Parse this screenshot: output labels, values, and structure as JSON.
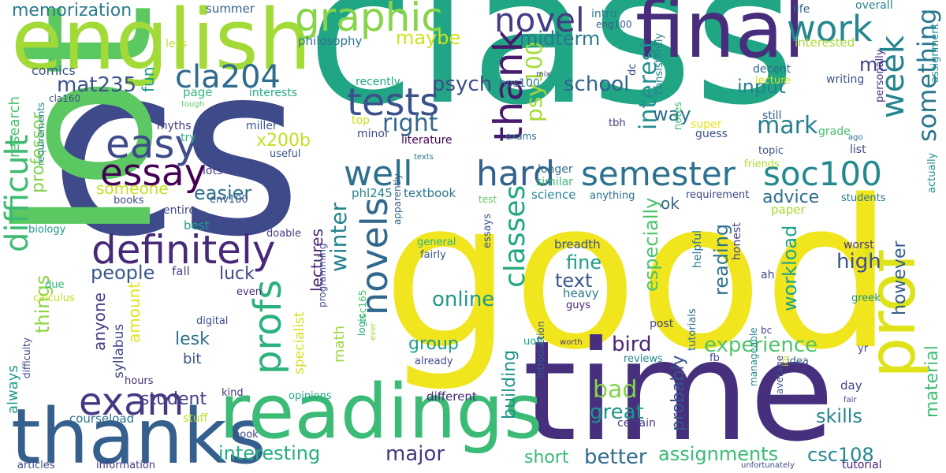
{
  "words": [
    {
      "text": "class",
      "color": "#21a685",
      "rotate": false
    },
    {
      "text": "cs",
      "color": "#3e4a89",
      "rotate": false
    },
    {
      "text": "good",
      "color": "#f1e51d",
      "rotate": false
    },
    {
      "text": "lot",
      "color": "#5cc862",
      "rotate": true
    },
    {
      "text": "time",
      "color": "#46307e",
      "rotate": false
    },
    {
      "text": "english",
      "color": "#a2da37",
      "rotate": false
    },
    {
      "text": "final",
      "color": "#472d7b",
      "rotate": false
    },
    {
      "text": "thanks",
      "color": "#355f8d",
      "rotate": false
    },
    {
      "text": "readings",
      "color": "#3bbb75",
      "rotate": false
    },
    {
      "text": "prof",
      "color": "#dde318",
      "rotate": true
    },
    {
      "text": "difficult",
      "color": "#3fbc73",
      "rotate": true
    },
    {
      "text": "graphic",
      "color": "#86d549",
      "rotate": false
    },
    {
      "text": "tests",
      "color": "#3b518b",
      "rotate": false
    },
    {
      "text": "novel",
      "color": "#433e85",
      "rotate": false
    },
    {
      "text": "thank",
      "color": "#481a6c",
      "rotate": true
    },
    {
      "text": "work",
      "color": "#24878e",
      "rotate": false
    },
    {
      "text": "week",
      "color": "#25858e",
      "rotate": true
    },
    {
      "text": "something",
      "color": "#2a788e",
      "rotate": true
    },
    {
      "text": "easy",
      "color": "#3e4c8a",
      "rotate": false
    },
    {
      "text": "essay",
      "color": "#440154",
      "rotate": false
    },
    {
      "text": "definitely",
      "color": "#482878",
      "rotate": false
    },
    {
      "text": "well",
      "color": "#2d708e",
      "rotate": false
    },
    {
      "text": "hard",
      "color": "#33638d",
      "rotate": false
    },
    {
      "text": "semester",
      "color": "#2c728e",
      "rotate": false
    },
    {
      "text": "soc100",
      "color": "#23898e",
      "rotate": false
    },
    {
      "text": "profs",
      "color": "#2db27d",
      "rotate": true
    },
    {
      "text": "novels",
      "color": "#31688e",
      "rotate": true
    },
    {
      "text": "exam",
      "color": "#453882",
      "rotate": false
    },
    {
      "text": "cla204",
      "color": "#2f6b8e",
      "rotate": false
    },
    {
      "text": "mat235",
      "color": "#3a548c",
      "rotate": false
    },
    {
      "text": "right",
      "color": "#31678e",
      "rotate": false
    },
    {
      "text": "psy100",
      "color": "#a5db36",
      "rotate": true
    },
    {
      "text": "psych",
      "color": "#3d4d8a",
      "rotate": false
    },
    {
      "text": "maybe",
      "color": "#d0e11c",
      "rotate": false
    },
    {
      "text": "midterm",
      "color": "#2a778e",
      "rotate": false
    },
    {
      "text": "mc",
      "color": "#414487",
      "rotate": false
    },
    {
      "text": "school",
      "color": "#32648e",
      "rotate": false
    },
    {
      "text": "interest",
      "color": "#21908d",
      "rotate": true
    },
    {
      "text": "mark",
      "color": "#27808e",
      "rotate": false
    },
    {
      "text": "input",
      "color": "#26828e",
      "rotate": false
    },
    {
      "text": "way",
      "color": "#2e6f8e",
      "rotate": false
    },
    {
      "text": "memorization",
      "color": "#297b8e",
      "rotate": false
    },
    {
      "text": "research",
      "color": "#4ac16d",
      "rotate": true
    },
    {
      "text": "professor",
      "color": "#81d34d",
      "rotate": true
    },
    {
      "text": "comics",
      "color": "#3b528b",
      "rotate": false
    },
    {
      "text": "fun",
      "color": "#1e9c89",
      "rotate": true
    },
    {
      "text": "page",
      "color": "#32b67a",
      "rotate": false
    },
    {
      "text": "x200b",
      "color": "#c2df23",
      "rotate": false
    },
    {
      "text": "someone",
      "color": "#c5e021",
      "rotate": false
    },
    {
      "text": "easier",
      "color": "#2c718e",
      "rotate": false
    },
    {
      "text": "winter",
      "color": "#25848e",
      "rotate": true
    },
    {
      "text": "lectures",
      "color": "#482374",
      "rotate": true
    },
    {
      "text": "classes",
      "color": "#22a884",
      "rotate": true
    },
    {
      "text": "online",
      "color": "#1f998a",
      "rotate": false
    },
    {
      "text": "people",
      "color": "#38588c",
      "rotate": false
    },
    {
      "text": "luck",
      "color": "#3e4989",
      "rotate": false
    },
    {
      "text": "things",
      "color": "#8bd646",
      "rotate": true
    },
    {
      "text": "always",
      "color": "#1f9a8a",
      "rotate": true
    },
    {
      "text": "amount",
      "color": "#e2e418",
      "rotate": true
    },
    {
      "text": "anyone",
      "color": "#433e85",
      "rotate": true
    },
    {
      "text": "lesk",
      "color": "#2d718e",
      "rotate": false
    },
    {
      "text": "bit",
      "color": "#3a538b",
      "rotate": false
    },
    {
      "text": "group",
      "color": "#1f9e89",
      "rotate": false
    },
    {
      "text": "math",
      "color": "#9bd93c",
      "rotate": true
    },
    {
      "text": "bird",
      "color": "#482475",
      "rotate": false
    },
    {
      "text": "experience",
      "color": "#50c46a",
      "rotate": false
    },
    {
      "text": "high",
      "color": "#3c4f8a",
      "rotate": false
    },
    {
      "text": "however",
      "color": "#365c8d",
      "rotate": true
    },
    {
      "text": "reading",
      "color": "#2d718e",
      "rotate": true
    },
    {
      "text": "workload",
      "color": "#20a386",
      "rotate": true
    },
    {
      "text": "especially",
      "color": "#4cc26c",
      "rotate": true
    },
    {
      "text": "advice",
      "color": "#2e6e8e",
      "rotate": false
    },
    {
      "text": "ok",
      "color": "#33638d",
      "rotate": false
    },
    {
      "text": "fine",
      "color": "#1e9b8a",
      "rotate": false
    },
    {
      "text": "text",
      "color": "#39568c",
      "rotate": false
    },
    {
      "text": "probably",
      "color": "#3a548c",
      "rotate": true
    },
    {
      "text": "bad",
      "color": "#84d44b",
      "rotate": false
    },
    {
      "text": "great",
      "color": "#1f968b",
      "rotate": false
    },
    {
      "text": "building",
      "color": "#20938c",
      "rotate": true
    },
    {
      "text": "student",
      "color": "#433e85",
      "rotate": false
    },
    {
      "text": "interesting",
      "color": "#28ae80",
      "rotate": false
    },
    {
      "text": "major",
      "color": "#453781",
      "rotate": false
    },
    {
      "text": "short",
      "color": "#3aba76",
      "rotate": false
    },
    {
      "text": "better",
      "color": "#2f6c8e",
      "rotate": false
    },
    {
      "text": "assignments",
      "color": "#3bbb75",
      "rotate": false
    },
    {
      "text": "csc108",
      "color": "#24868e",
      "rotate": false
    },
    {
      "text": "skills",
      "color": "#25848e",
      "rotate": false
    },
    {
      "text": "material",
      "color": "#3dbc74",
      "rotate": true
    },
    {
      "text": "specialist",
      "color": "#d2e21b",
      "rotate": true
    },
    {
      "text": "syllabus",
      "color": "#3f4889",
      "rotate": true
    },
    {
      "text": "summer",
      "color": "#34608d",
      "rotate": false
    },
    {
      "text": "philosophy",
      "color": "#2c738e",
      "rotate": false
    },
    {
      "text": "interested",
      "color": "#a8db34",
      "rotate": false
    },
    {
      "text": "intro",
      "color": "#297a8e",
      "rotate": false
    },
    {
      "text": "eng100",
      "color": "#38598c",
      "rotate": false
    },
    {
      "text": "life",
      "color": "#31688e",
      "rotate": false
    },
    {
      "text": "overall",
      "color": "#27808e",
      "rotate": false
    },
    {
      "text": "assignment",
      "color": "#228d8d",
      "rotate": true
    },
    {
      "text": "decent",
      "color": "#31688e",
      "rotate": false
    },
    {
      "text": "lecture",
      "color": "#d0e11c",
      "rotate": false
    },
    {
      "text": "dc",
      "color": "#3a538b",
      "rotate": true
    },
    {
      "text": "consistently",
      "color": "#26828e",
      "rotate": true
    },
    {
      "text": "less",
      "color": "#bddf26",
      "rotate": false
    },
    {
      "text": "recently",
      "color": "#22a785",
      "rotate": false
    },
    {
      "text": "hps100",
      "color": "#2a768e",
      "rotate": false
    },
    {
      "text": "mix",
      "color": "#404588",
      "rotate": false
    },
    {
      "text": "writing",
      "color": "#3a548c",
      "rotate": false
    },
    {
      "text": "interests",
      "color": "#22a884",
      "rotate": false
    },
    {
      "text": "cla160",
      "color": "#3d4e8a",
      "rotate": false
    },
    {
      "text": "requirements",
      "color": "#238a8d",
      "rotate": true
    },
    {
      "text": "miller",
      "color": "#39558c",
      "rotate": false
    },
    {
      "text": "myths",
      "color": "#433e85",
      "rotate": false
    },
    {
      "text": "tough",
      "color": "#5ec962",
      "rotate": false
    },
    {
      "text": "try",
      "color": "#2ab07f",
      "rotate": false
    },
    {
      "text": "top",
      "color": "#cde11d",
      "rotate": false
    },
    {
      "text": "minor",
      "color": "#3d4e8a",
      "rotate": false
    },
    {
      "text": "literature",
      "color": "#440154",
      "rotate": false
    },
    {
      "text": "exams",
      "color": "#2e6f8e",
      "rotate": false
    },
    {
      "text": "notes",
      "color": "#3bbb75",
      "rotate": true
    },
    {
      "text": "super",
      "color": "#e5e419",
      "rotate": false
    },
    {
      "text": "tbh",
      "color": "#453882",
      "rotate": false
    },
    {
      "text": "guess",
      "color": "#3b518b",
      "rotate": false
    },
    {
      "text": "grade",
      "color": "#46c06f",
      "rotate": false
    },
    {
      "text": "ago",
      "color": "#2d718e",
      "rotate": false
    },
    {
      "text": "topic",
      "color": "#3a548c",
      "rotate": false
    },
    {
      "text": "list",
      "color": "#3f4788",
      "rotate": false
    },
    {
      "text": "still",
      "color": "#35608d",
      "rotate": false
    },
    {
      "text": "personally",
      "color": "#472c7a",
      "rotate": true
    },
    {
      "text": "actually",
      "color": "#21918c",
      "rotate": true
    },
    {
      "text": "useful",
      "color": "#3b528b",
      "rotate": false
    },
    {
      "text": "lots",
      "color": "#453781",
      "rotate": false
    },
    {
      "text": "texts",
      "color": "#2a768e",
      "rotate": false
    },
    {
      "text": "longer",
      "color": "#2e6e8e",
      "rotate": false
    },
    {
      "text": "similar",
      "color": "#3bbb75",
      "rotate": false
    },
    {
      "text": "friends",
      "color": "#addc30",
      "rotate": false
    },
    {
      "text": "books",
      "color": "#3e4a89",
      "rotate": false
    },
    {
      "text": "entire",
      "color": "#3e4a89",
      "rotate": false
    },
    {
      "text": "env100",
      "color": "#3a538b",
      "rotate": false
    },
    {
      "text": "phl245",
      "color": "#26828e",
      "rotate": false
    },
    {
      "text": "textbook",
      "color": "#2a768e",
      "rotate": false
    },
    {
      "text": "science",
      "color": "#25848e",
      "rotate": false
    },
    {
      "text": "anything",
      "color": "#2c718e",
      "rotate": false
    },
    {
      "text": "requirement",
      "color": "#3f4788",
      "rotate": false
    },
    {
      "text": "students",
      "color": "#2a778e",
      "rotate": false
    },
    {
      "text": "paper",
      "color": "#a8db34",
      "rotate": false
    },
    {
      "text": "best",
      "color": "#1f9e89",
      "rotate": false
    },
    {
      "text": "biology",
      "color": "#1f9a8a",
      "rotate": false
    },
    {
      "text": "doable",
      "color": "#443983",
      "rotate": false
    },
    {
      "text": "test",
      "color": "#5ec962",
      "rotate": false
    },
    {
      "text": "general",
      "color": "#30b57b",
      "rotate": false
    },
    {
      "text": "fairly",
      "color": "#3a548c",
      "rotate": false
    },
    {
      "text": "apparently",
      "color": "#34618d",
      "rotate": true
    },
    {
      "text": "essays",
      "color": "#3b528b",
      "rotate": true
    },
    {
      "text": "breadth",
      "color": "#3b518b",
      "rotate": false
    },
    {
      "text": "worst",
      "color": "#443983",
      "rotate": false
    },
    {
      "text": "ah",
      "color": "#3f4788",
      "rotate": false
    },
    {
      "text": "honest",
      "color": "#433e85",
      "rotate": true
    },
    {
      "text": "helpful",
      "color": "#297b8e",
      "rotate": true
    },
    {
      "text": "greek",
      "color": "#21918c",
      "rotate": false
    },
    {
      "text": "heavy",
      "color": "#2a788e",
      "rotate": false
    },
    {
      "text": "guys",
      "color": "#482475",
      "rotate": false
    },
    {
      "text": "fall",
      "color": "#414487",
      "rotate": false
    },
    {
      "text": "due",
      "color": "#2db27d",
      "rotate": false
    },
    {
      "text": "calculus",
      "color": "#c5e021",
      "rotate": false
    },
    {
      "text": "even",
      "color": "#472a7a",
      "rotate": false
    },
    {
      "text": "digital",
      "color": "#3d4e8a",
      "rotate": false
    },
    {
      "text": "programming",
      "color": "#3f4889",
      "rotate": true
    },
    {
      "text": "logic",
      "color": "#21a685",
      "rotate": true
    },
    {
      "text": "csc165",
      "color": "#4ac16d",
      "rotate": true
    },
    {
      "text": "ever",
      "color": "#9fda3a",
      "rotate": true
    },
    {
      "text": "already",
      "color": "#404688",
      "rotate": false
    },
    {
      "text": "uoft",
      "color": "#1fa188",
      "rotate": false
    },
    {
      "text": "worth",
      "color": "#453882",
      "rotate": false
    },
    {
      "text": "post",
      "color": "#404688",
      "rotate": false
    },
    {
      "text": "bc",
      "color": "#424186",
      "rotate": false
    },
    {
      "text": "tutorials",
      "color": "#2e6e8e",
      "rotate": true
    },
    {
      "text": "fb",
      "color": "#3f4788",
      "rotate": false
    },
    {
      "text": "idea",
      "color": "#355e8d",
      "rotate": false
    },
    {
      "text": "yr",
      "color": "#3e4989",
      "rotate": false
    },
    {
      "text": "lol",
      "color": "#cae11f",
      "rotate": true
    },
    {
      "text": "reviews",
      "color": "#23898e",
      "rotate": false
    },
    {
      "text": "hours",
      "color": "#472d7b",
      "rotate": false
    },
    {
      "text": "difficulty",
      "color": "#3f4889",
      "rotate": true
    },
    {
      "text": "kind",
      "color": "#463480",
      "rotate": false
    },
    {
      "text": "stuff",
      "color": "#bade28",
      "rotate": false
    },
    {
      "text": "opinions",
      "color": "#22a785",
      "rotate": false
    },
    {
      "text": "different",
      "color": "#482878",
      "rotate": false
    },
    {
      "text": "introduction",
      "color": "#38598c",
      "rotate": true
    },
    {
      "text": "manageable",
      "color": "#24878e",
      "rotate": true
    },
    {
      "text": "average",
      "color": "#3b528b",
      "rotate": true
    },
    {
      "text": "fair",
      "color": "#3f4788",
      "rotate": false
    },
    {
      "text": "day",
      "color": "#3e4989",
      "rotate": false
    },
    {
      "text": "certain",
      "color": "#453882",
      "rotate": false
    },
    {
      "text": "courseload",
      "color": "#2c738e",
      "rotate": false
    },
    {
      "text": "book",
      "color": "#3e4989",
      "rotate": false
    },
    {
      "text": "articles",
      "color": "#3e4989",
      "rotate": false
    },
    {
      "text": "information",
      "color": "#443983",
      "rotate": false
    },
    {
      "text": "unfortunately",
      "color": "#3f4788",
      "rotate": false
    },
    {
      "text": "tutorial",
      "color": "#482475",
      "rotate": false
    }
  ]
}
